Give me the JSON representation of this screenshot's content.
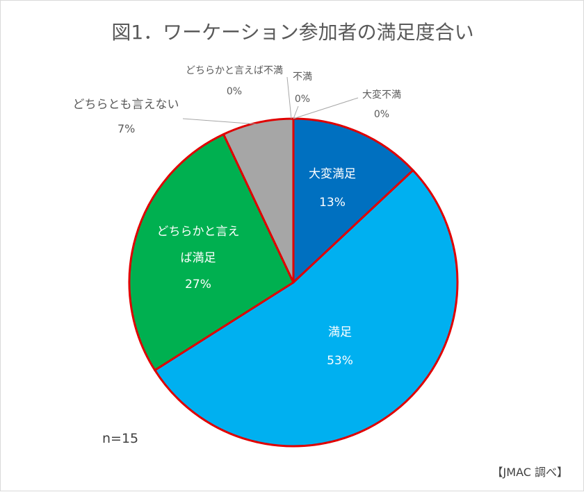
{
  "chart_data": {
    "type": "pie",
    "title": "図1．ワーケーション参加者の満足度合い",
    "slices": [
      {
        "label": "大変満足",
        "value": 13,
        "value_label": "13%",
        "color": "#0070C0"
      },
      {
        "label": "満足",
        "value": 53,
        "value_label": "53%",
        "color": "#00B0F0"
      },
      {
        "label": "どちらかと言えば満足",
        "label_line1": "どちらかと言え",
        "label_line2": "ば満足",
        "value": 27,
        "value_label": "27%",
        "color": "#00B050"
      },
      {
        "label": "どちらとも言えない",
        "value": 7,
        "value_label": "7%",
        "color": "#A6A6A6"
      },
      {
        "label": "どちらかと言えば不満",
        "value": 0,
        "value_label": "0%",
        "color": "#7F7F7F"
      },
      {
        "label": "不満",
        "value": 0,
        "value_label": "0%",
        "color": "#595959"
      },
      {
        "label": "大変不満",
        "value": 0,
        "value_label": "0%",
        "color": "#404040"
      }
    ],
    "slice_border_color": "#E00000"
  },
  "notes": {
    "sample_size": "n=15",
    "source": "【JMAC 調べ】"
  }
}
